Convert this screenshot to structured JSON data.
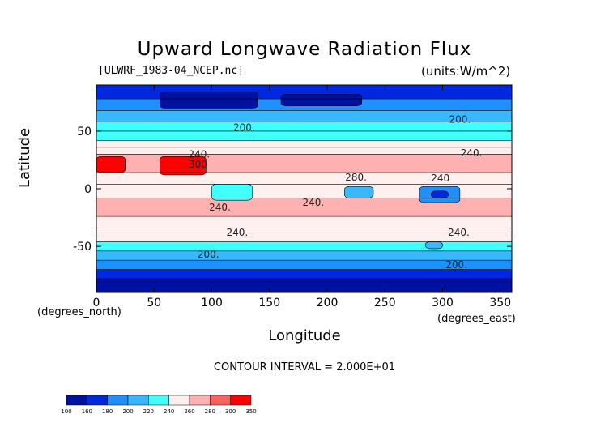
{
  "chart_data": {
    "type": "heatmap",
    "title": "Upward Longwave Radiation Flux",
    "file_label": "[ULWRF_1983-04_NCEP.nc]",
    "units_label": "(units:W/m^2)",
    "xlabel": "Longitude",
    "ylabel": "Latitude",
    "x_unit_label": "(degrees_east)",
    "y_unit_label": "(degrees_north)",
    "xlim": [
      0,
      360
    ],
    "ylim": [
      -90,
      90
    ],
    "x_ticks": [
      0,
      50,
      100,
      150,
      200,
      250,
      300,
      350
    ],
    "y_ticks": [
      -50,
      0,
      50
    ],
    "contour_interval_text": "CONTOUR INTERVAL = 2.000E+01",
    "colorbar": {
      "levels": [
        100,
        160,
        180,
        200,
        220,
        240,
        260,
        280,
        300,
        350
      ],
      "colors": [
        "#0010a0",
        "#0028e0",
        "#1e90ff",
        "#38b8ff",
        "#40ffff",
        "#fff0f0",
        "#ffb0b0",
        "#ff6060",
        "#ff0000"
      ]
    },
    "contour_labels": [
      {
        "text": "200.",
        "lon": 128,
        "lat": 53
      },
      {
        "text": "200.",
        "lon": 315,
        "lat": 60
      },
      {
        "text": "240.",
        "lon": 89,
        "lat": 30
      },
      {
        "text": "300",
        "lon": 88,
        "lat": 21
      },
      {
        "text": "240.",
        "lon": 325,
        "lat": 31
      },
      {
        "text": "280.",
        "lon": 225,
        "lat": 10
      },
      {
        "text": "240",
        "lon": 298,
        "lat": 9
      },
      {
        "text": "240.",
        "lon": 107,
        "lat": -16
      },
      {
        "text": "240.",
        "lon": 188,
        "lat": -12
      },
      {
        "text": "240.",
        "lon": 122,
        "lat": -38
      },
      {
        "text": "240.",
        "lon": 314,
        "lat": -38
      },
      {
        "text": "200.",
        "lon": 97,
        "lat": -57
      },
      {
        "text": "200.",
        "lon": 312,
        "lat": -66
      }
    ],
    "zonal_bands": [
      {
        "lat": [
          78,
          90
        ],
        "value": 175
      },
      {
        "lat": [
          68,
          78
        ],
        "value": 190
      },
      {
        "lat": [
          58,
          68
        ],
        "value": 205
      },
      {
        "lat": [
          50,
          58
        ],
        "value": 225
      },
      {
        "lat": [
          42,
          50
        ],
        "value": 235
      },
      {
        "lat": [
          36,
          42
        ],
        "value": 245
      },
      {
        "lat": [
          30,
          36
        ],
        "value": 255
      },
      {
        "lat": [
          14,
          30
        ],
        "value": 275
      },
      {
        "lat": [
          4,
          14
        ],
        "value": 255
      },
      {
        "lat": [
          -8,
          4
        ],
        "value": 245
      },
      {
        "lat": [
          -24,
          -8
        ],
        "value": 270
      },
      {
        "lat": [
          -34,
          -24
        ],
        "value": 255
      },
      {
        "lat": [
          -46,
          -34
        ],
        "value": 240
      },
      {
        "lat": [
          -54,
          -46
        ],
        "value": 225
      },
      {
        "lat": [
          -62,
          -54
        ],
        "value": 210
      },
      {
        "lat": [
          -70,
          -62
        ],
        "value": 195
      },
      {
        "lat": [
          -78,
          -70
        ],
        "value": 170
      },
      {
        "lat": [
          -90,
          -78
        ],
        "value": 150
      }
    ],
    "regional_cells": [
      {
        "lon": [
          55,
          140
        ],
        "lat": [
          70,
          84
        ],
        "value": 150
      },
      {
        "lon": [
          160,
          230
        ],
        "lat": [
          72,
          82
        ],
        "value": 150
      },
      {
        "lon": [
          0,
          25
        ],
        "lat": [
          14,
          28
        ],
        "value": 305
      },
      {
        "lon": [
          55,
          95
        ],
        "lat": [
          12,
          28
        ],
        "value": 305
      },
      {
        "lon": [
          280,
          315
        ],
        "lat": [
          -12,
          2
        ],
        "value": 195
      },
      {
        "lon": [
          290,
          305
        ],
        "lat": [
          -8,
          -2
        ],
        "value": 165
      },
      {
        "lon": [
          215,
          240
        ],
        "lat": [
          -8,
          2
        ],
        "value": 210
      },
      {
        "lon": [
          100,
          135
        ],
        "lat": [
          -10,
          4
        ],
        "value": 235
      },
      {
        "lon": [
          285,
          300
        ],
        "lat": [
          -52,
          -46
        ],
        "value": 200
      }
    ]
  }
}
